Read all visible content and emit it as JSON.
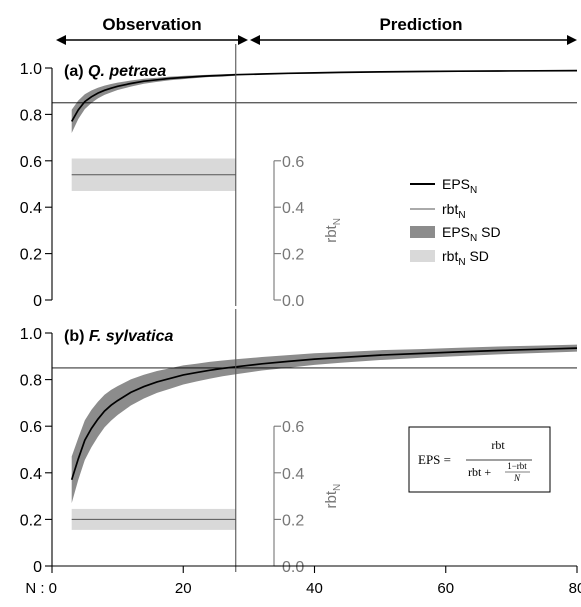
{
  "chart_data": {
    "type": "line",
    "header": {
      "left": "Observation",
      "right": "Prediction"
    },
    "x_axis": {
      "prefix": "N : ",
      "ticks": [
        0,
        20,
        40,
        60,
        80
      ],
      "xlim": [
        0,
        80
      ]
    },
    "observation_prediction_boundary": 28,
    "reference_line_y": 0.85,
    "legend": {
      "eps": "EPS",
      "rbt": "rbt",
      "eps_sd": "EPS",
      "rbt_sd": "rbt",
      "sub": "N",
      "sd_suffix": " SD"
    },
    "right_axis": {
      "label": "rbt",
      "label_sub": "N",
      "ticks": [
        "0.0",
        "0.2",
        "0.4",
        "0.6"
      ]
    },
    "formula": {
      "lhs": "EPS =",
      "num": "rbt",
      "den_left": "rbt +",
      "den_num": "1−rbt",
      "den_den": "N"
    },
    "panels": [
      {
        "id": "a",
        "prefix": "(a) ",
        "species": "Q. petraea",
        "ylim": [
          0,
          1.0
        ],
        "yticks": [
          "0",
          "0.2",
          "0.4",
          "0.6",
          "0.8",
          "1.0"
        ],
        "rbt_mean": 0.54,
        "rbt_sd": 0.07,
        "eps_mean": [
          [
            3,
            0.77
          ],
          [
            4,
            0.82
          ],
          [
            5,
            0.855
          ],
          [
            6,
            0.876
          ],
          [
            7,
            0.892
          ],
          [
            8,
            0.904
          ],
          [
            9,
            0.913
          ],
          [
            10,
            0.921
          ],
          [
            12,
            0.933
          ],
          [
            14,
            0.943
          ],
          [
            16,
            0.949
          ],
          [
            18,
            0.955
          ],
          [
            20,
            0.959
          ],
          [
            22,
            0.963
          ],
          [
            24,
            0.966
          ],
          [
            26,
            0.968
          ],
          [
            28,
            0.971
          ],
          [
            32,
            0.974
          ],
          [
            36,
            0.977
          ],
          [
            40,
            0.979
          ],
          [
            44,
            0.981
          ],
          [
            50,
            0.983
          ],
          [
            56,
            0.985
          ],
          [
            62,
            0.986
          ],
          [
            68,
            0.987
          ],
          [
            74,
            0.988
          ],
          [
            80,
            0.989
          ]
        ],
        "eps_sd": [
          [
            3,
            0.05
          ],
          [
            4,
            0.04
          ],
          [
            5,
            0.032
          ],
          [
            6,
            0.027
          ],
          [
            7,
            0.023
          ],
          [
            8,
            0.02
          ],
          [
            9,
            0.018
          ],
          [
            10,
            0.016
          ],
          [
            12,
            0.013
          ],
          [
            14,
            0.011
          ],
          [
            16,
            0.009
          ],
          [
            18,
            0.008
          ],
          [
            20,
            0.007
          ],
          [
            22,
            0.006
          ],
          [
            24,
            0.005
          ],
          [
            26,
            0.005
          ],
          [
            28,
            0.004
          ]
        ]
      },
      {
        "id": "b",
        "prefix": "(b) ",
        "species": "F. sylvatica",
        "ylim": [
          0,
          1.0
        ],
        "yticks": [
          "0",
          "0.2",
          "0.4",
          "0.6",
          "0.8",
          "1.0"
        ],
        "rbt_mean": 0.2,
        "rbt_sd": 0.045,
        "eps_mean": [
          [
            3,
            0.37
          ],
          [
            4,
            0.46
          ],
          [
            5,
            0.54
          ],
          [
            6,
            0.59
          ],
          [
            7,
            0.63
          ],
          [
            8,
            0.665
          ],
          [
            9,
            0.69
          ],
          [
            10,
            0.71
          ],
          [
            12,
            0.745
          ],
          [
            14,
            0.77
          ],
          [
            16,
            0.79
          ],
          [
            18,
            0.805
          ],
          [
            20,
            0.82
          ],
          [
            22,
            0.83
          ],
          [
            24,
            0.84
          ],
          [
            26,
            0.848
          ],
          [
            28,
            0.855
          ],
          [
            32,
            0.868
          ],
          [
            36,
            0.878
          ],
          [
            40,
            0.888
          ],
          [
            44,
            0.895
          ],
          [
            50,
            0.905
          ],
          [
            56,
            0.912
          ],
          [
            62,
            0.919
          ],
          [
            68,
            0.925
          ],
          [
            74,
            0.93
          ],
          [
            80,
            0.935
          ]
        ],
        "eps_sd": [
          [
            3,
            0.1
          ],
          [
            4,
            0.09
          ],
          [
            5,
            0.085
          ],
          [
            6,
            0.08
          ],
          [
            7,
            0.075
          ],
          [
            8,
            0.07
          ],
          [
            9,
            0.066
          ],
          [
            10,
            0.062
          ],
          [
            12,
            0.056
          ],
          [
            14,
            0.051
          ],
          [
            16,
            0.047
          ],
          [
            18,
            0.044
          ],
          [
            20,
            0.041
          ],
          [
            22,
            0.038
          ],
          [
            24,
            0.036
          ],
          [
            26,
            0.034
          ],
          [
            28,
            0.032
          ],
          [
            32,
            0.029
          ],
          [
            36,
            0.027
          ],
          [
            40,
            0.025
          ],
          [
            44,
            0.023
          ],
          [
            50,
            0.021
          ],
          [
            56,
            0.019
          ],
          [
            62,
            0.018
          ],
          [
            68,
            0.017
          ],
          [
            74,
            0.016
          ],
          [
            80,
            0.015
          ]
        ]
      }
    ],
    "colors": {
      "eps_line": "#000000",
      "rbt_line": "#555555",
      "eps_sd_band": "#8c8c8c",
      "rbt_sd_band": "#d9d9d9",
      "right_axis": "#777777"
    }
  }
}
